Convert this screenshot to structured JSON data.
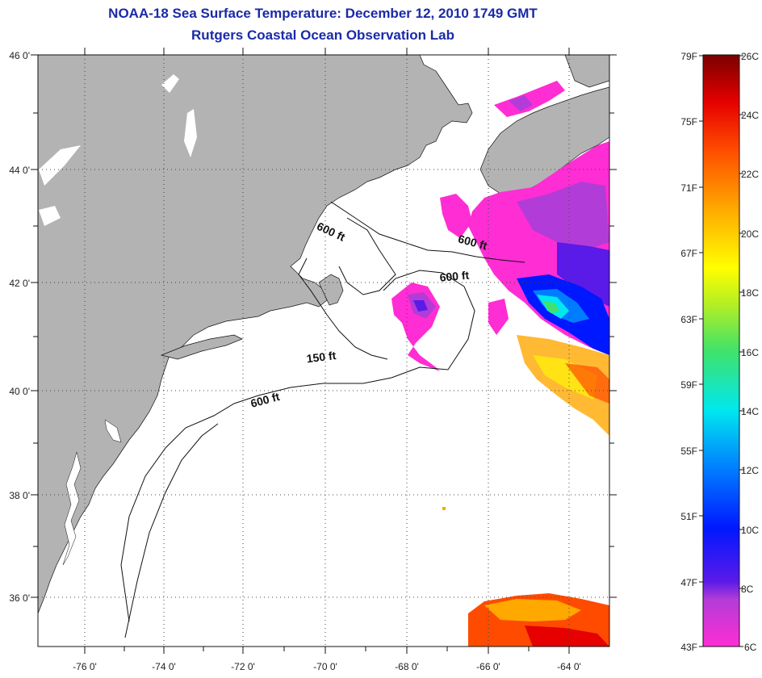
{
  "header": {
    "title": "NOAA-18 Sea Surface Temperature:  December 12, 2010 1749 GMT",
    "subtitle": "Rutgers Coastal Ocean Observation Lab"
  },
  "axes": {
    "lat_labels": [
      "46 0'",
      "44 0'",
      "42 0'",
      "40 0'",
      "38 0'",
      "36 0'"
    ],
    "lon_labels": [
      "-76 0'",
      "-74 0'",
      "-72 0'",
      "-70 0'",
      "-68 0'",
      "-66 0'",
      "-64 0'"
    ]
  },
  "contours": {
    "label_600_a": "600 ft",
    "label_600_b": "600 ft",
    "label_600_c": "600 ft",
    "label_600_d": "600 ft",
    "label_150": "150 ft"
  },
  "colorbar": {
    "fahrenheit": [
      "79F",
      "75F",
      "71F",
      "67F",
      "63F",
      "59F",
      "55F",
      "51F",
      "47F",
      "43F"
    ],
    "celsius": [
      "26C",
      "24C",
      "22C",
      "20C",
      "18C",
      "16C",
      "14C",
      "12C",
      "10C",
      "8C",
      "6C"
    ]
  },
  "colors": {
    "land": "#b3b3b3",
    "ocean": "#ffffff",
    "title": "#1a2aa8"
  }
}
